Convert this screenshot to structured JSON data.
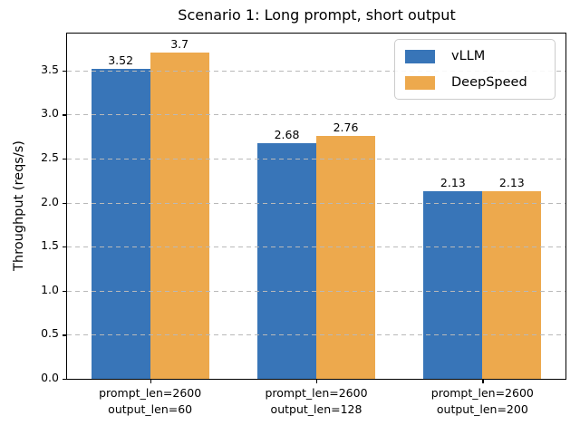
{
  "chart_data": {
    "type": "bar",
    "title": "Scenario 1: Long prompt, short output",
    "ylabel": "Throughput (reqs/s)",
    "xlabel": "",
    "categories": [
      [
        "prompt_len=2600",
        "output_len=60"
      ],
      [
        "prompt_len=2600",
        "output_len=128"
      ],
      [
        "prompt_len=2600",
        "output_len=200"
      ]
    ],
    "series": [
      {
        "name": "vLLM",
        "color": "#3875b8",
        "values": [
          3.52,
          2.68,
          2.13
        ]
      },
      {
        "name": "DeepSpeed",
        "color": "#eda94d",
        "values": [
          3.7,
          2.76,
          2.13
        ]
      }
    ],
    "bar_labels": [
      [
        "3.52",
        "2.68",
        "2.13"
      ],
      [
        "3.7",
        "2.76",
        "2.13"
      ]
    ],
    "yticks": [
      0.0,
      0.5,
      1.0,
      1.5,
      2.0,
      2.5,
      3.0,
      3.5
    ],
    "ylim": [
      0,
      3.92
    ],
    "grid": {
      "axis": "y",
      "style": "dashed",
      "color": "#b9b9b9"
    },
    "legend": {
      "position": "upper right",
      "entries": [
        "vLLM",
        "DeepSpeed"
      ]
    },
    "spine_color": "#000000"
  }
}
